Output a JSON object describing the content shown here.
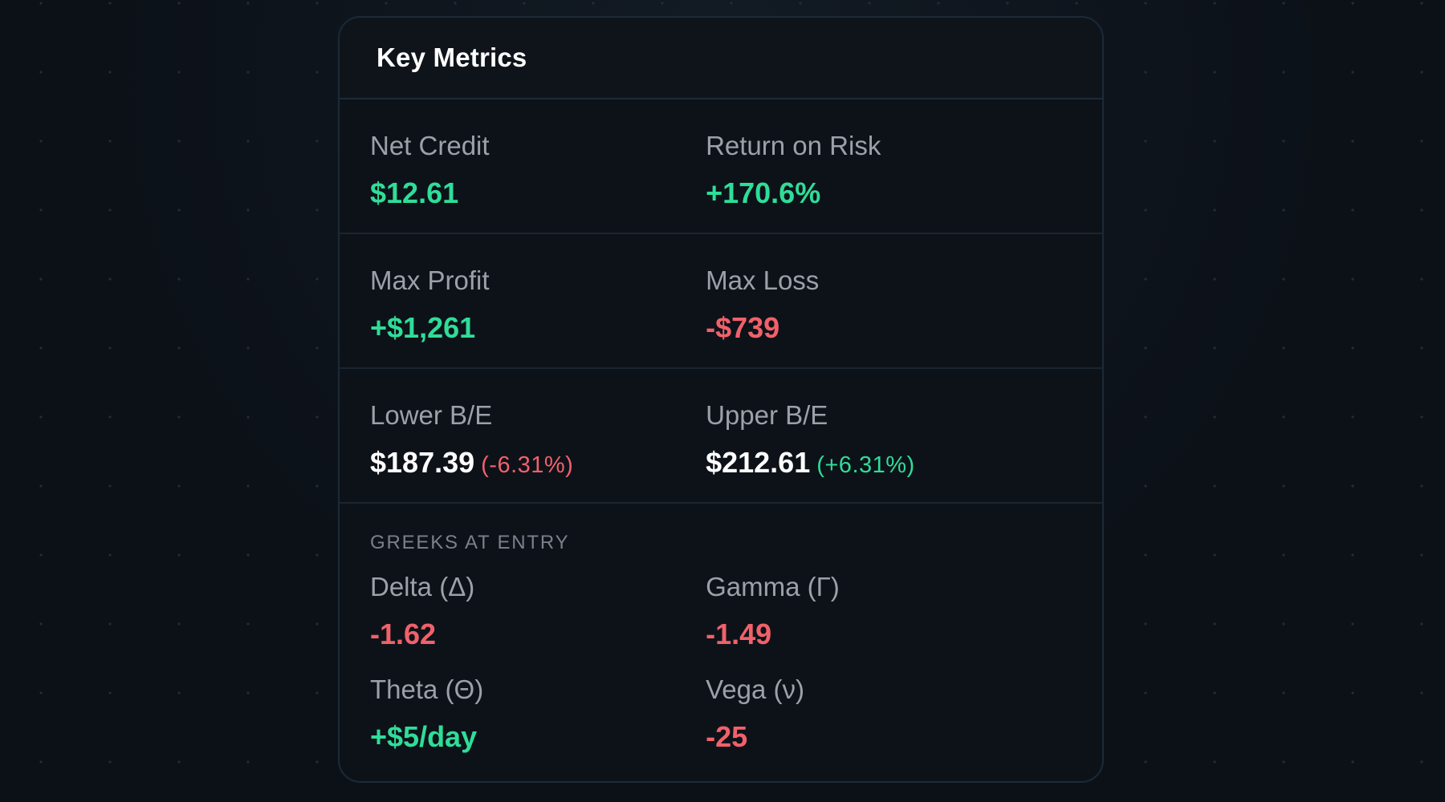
{
  "card": {
    "title": "Key Metrics"
  },
  "metrics": {
    "net_credit": {
      "label": "Net Credit",
      "value": "$12.61"
    },
    "return_on_risk": {
      "label": "Return on Risk",
      "value": "+170.6%"
    },
    "max_profit": {
      "label": "Max Profit",
      "value": "+$1,261"
    },
    "max_loss": {
      "label": "Max Loss",
      "value": "-$739"
    },
    "lower_be": {
      "label": "Lower B/E",
      "value": "$187.39",
      "pct": "(-6.31%)"
    },
    "upper_be": {
      "label": "Upper B/E",
      "value": "$212.61",
      "pct": "(+6.31%)"
    }
  },
  "greeks": {
    "heading": "GREEKS AT ENTRY",
    "delta": {
      "label": "Delta (Δ)",
      "value": "-1.62"
    },
    "gamma": {
      "label": "Gamma (Γ)",
      "value": "-1.49"
    },
    "theta": {
      "label": "Theta (Θ)",
      "value": "+$5/day"
    },
    "vega": {
      "label": "Vega (ν)",
      "value": "-25"
    }
  },
  "colors": {
    "positive": "#2fdd98",
    "negative": "#f1616a",
    "background": "#0c1118",
    "card": "#0d1219"
  }
}
